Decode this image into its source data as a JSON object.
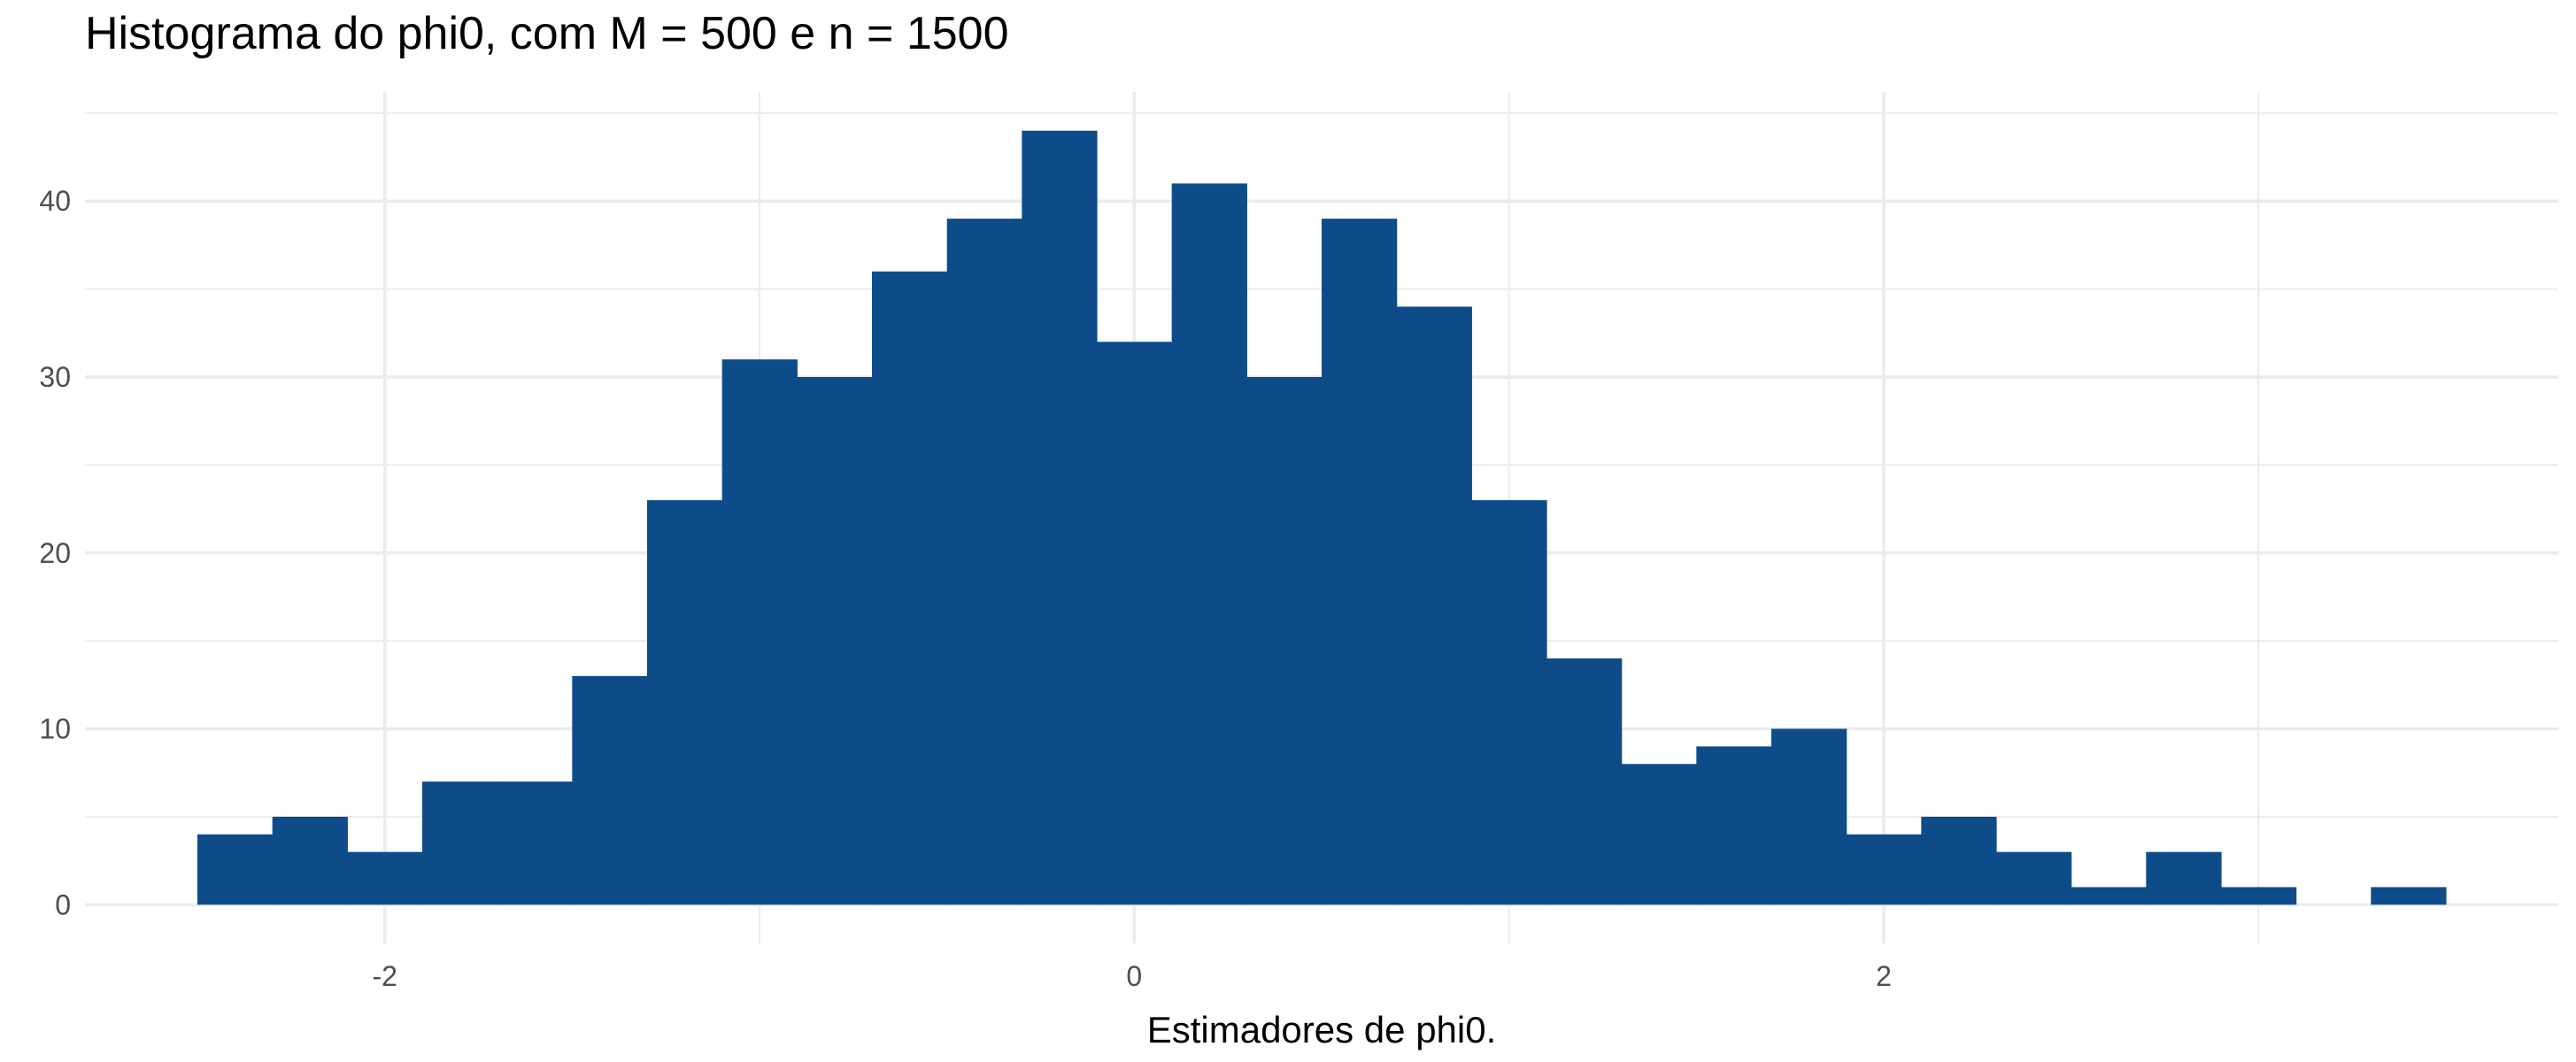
{
  "chart_data": {
    "type": "bar",
    "title": "Histograma do phi0, com M = 500 e n = 1500",
    "xlabel": "Estimadores de phi0.",
    "ylabel": "",
    "x_tick_labels": [
      "-2",
      "0",
      "2"
    ],
    "x_tick_values": [
      -2,
      0,
      2
    ],
    "y_tick_labels": [
      "0",
      "10",
      "20",
      "30",
      "40"
    ],
    "y_tick_values": [
      0,
      10,
      20,
      30,
      40
    ],
    "xlim": [
      -2.8,
      3.8
    ],
    "ylim": [
      -2.2,
      46.2
    ],
    "bin_width": 0.2,
    "bin_starts": [
      -2.5,
      -2.3,
      -2.1,
      -1.9,
      -1.7,
      -1.5,
      -1.3,
      -1.1,
      -0.9,
      -0.7,
      -0.5,
      -0.3,
      -0.1,
      0.1,
      0.3,
      0.5,
      0.7,
      0.9,
      1.1,
      1.3,
      1.5,
      1.7,
      1.9,
      2.1,
      2.3,
      2.5,
      2.7,
      2.9,
      3.1,
      3.3
    ],
    "values": [
      4,
      5,
      3,
      7,
      7,
      13,
      23,
      31,
      30,
      36,
      39,
      44,
      32,
      41,
      30,
      39,
      34,
      23,
      14,
      8,
      9,
      10,
      4,
      5,
      3,
      1,
      3,
      1,
      0,
      1
    ],
    "grid": true,
    "legend": "none",
    "bar_color": "#0e4c89",
    "grid_color": "#ebebeb",
    "background": "#ffffff"
  }
}
